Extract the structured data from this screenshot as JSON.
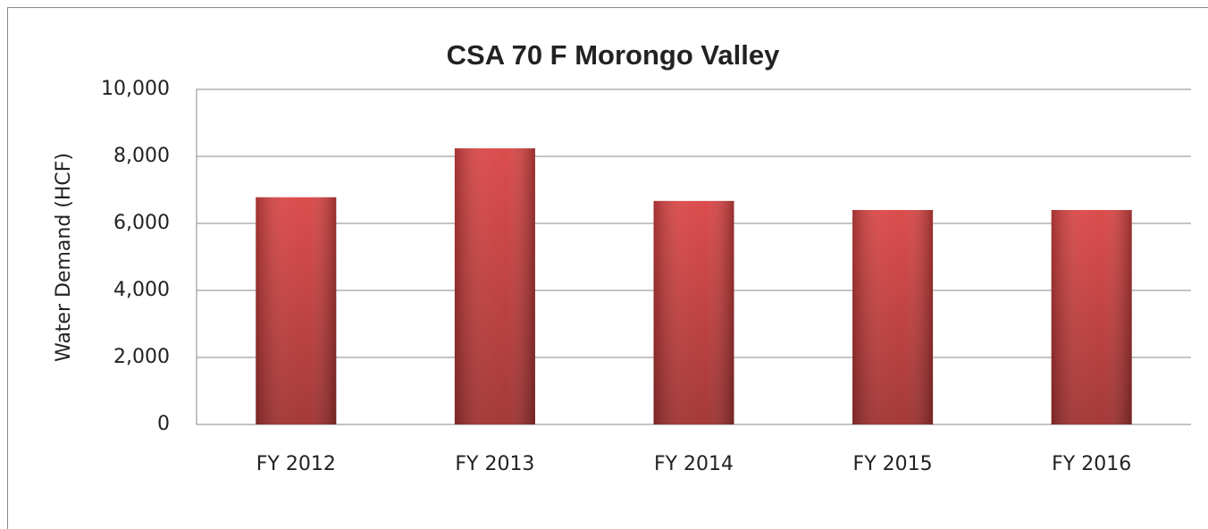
{
  "chart_data": {
    "type": "bar",
    "title": "CSA 70 F Morongo  Valley",
    "y_label": "Water Demand (HCF)",
    "categories": [
      "FY 2012",
      "FY 2013",
      "FY 2014",
      "FY 2015",
      "FY 2016"
    ],
    "values": [
      6780,
      8240,
      6670,
      6400,
      6400
    ],
    "color": "#d94343",
    "ylim": [
      0,
      10000
    ],
    "yticks": [
      0,
      {
        "value": 2000,
        "label": "2,000"
      },
      {
        "value": 4000,
        "label": "4,000"
      },
      {
        "value": 6000,
        "label": "6,000"
      },
      {
        "value": 8000,
        "label": "8,000"
      },
      {
        "value": 10000,
        "label": "10,000"
      }
    ],
    "grid": true
  }
}
